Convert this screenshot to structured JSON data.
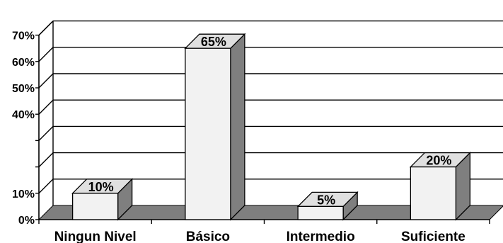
{
  "chart_data": {
    "type": "bar",
    "style": "3d-column",
    "title": "",
    "xlabel": "",
    "ylabel": "",
    "categories": [
      "Ningun Nivel",
      "Básico",
      "Intermedio",
      "Suficiente"
    ],
    "values": [
      10,
      65,
      5,
      20
    ],
    "data_labels": [
      "10%",
      "65%",
      "5%",
      "20%"
    ],
    "ylim": [
      0,
      70
    ],
    "y_ticks": [
      {
        "value": 0,
        "label": "0%"
      },
      {
        "value": 10,
        "label": "10%"
      },
      {
        "value": 20,
        "label": ""
      },
      {
        "value": 30,
        "label": ""
      },
      {
        "value": 40,
        "label": "40%"
      },
      {
        "value": 50,
        "label": "50%"
      },
      {
        "value": 60,
        "label": "60%"
      },
      {
        "value": 70,
        "label": "70%"
      }
    ],
    "grid": true,
    "legend": "none",
    "colors": {
      "bar_front": "#f2f2f2",
      "bar_top": "#e0e0e0",
      "bar_side": "#7f7f7f",
      "floor": "#7f7f7f",
      "gridline": "#000000"
    }
  }
}
